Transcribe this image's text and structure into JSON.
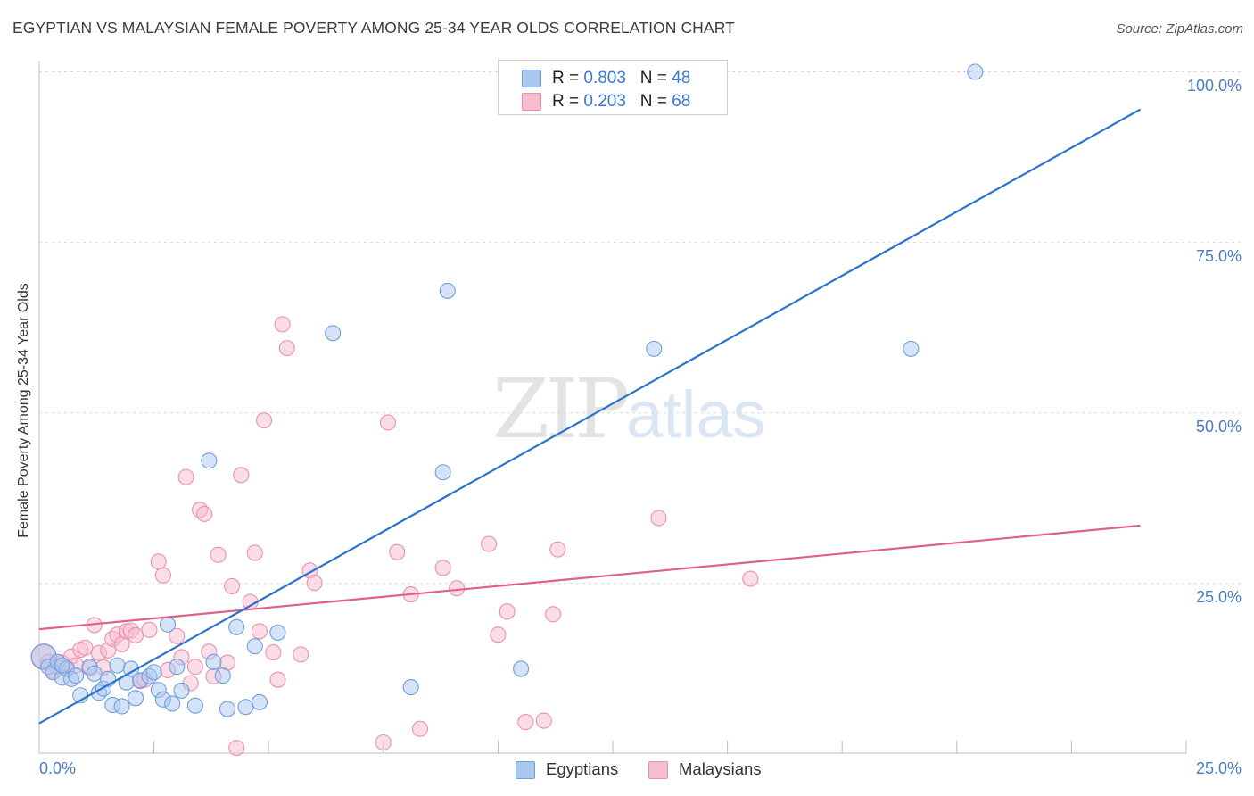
{
  "title": "EGYPTIAN VS MALAYSIAN FEMALE POVERTY AMONG 25-34 YEAR OLDS CORRELATION CHART",
  "source": "Source: ZipAtlas.com",
  "watermark": {
    "zip": "ZIP",
    "atlas": "atlas"
  },
  "legend_top": {
    "egyptians": {
      "r_label": "R = ",
      "r_value": "0.803",
      "n_label": "N = ",
      "n_value": "48"
    },
    "malaysians": {
      "r_label": "R = ",
      "r_value": "0.203",
      "n_label": "N = ",
      "n_value": "68"
    }
  },
  "legend_bottom": {
    "egyptians": "Egyptians",
    "malaysians": "Malaysians"
  },
  "colors": {
    "egyptians_fill": "#a9c8f0",
    "egyptians_stroke": "#6f9fdc",
    "egyptians_line": "#2b73cf",
    "malaysians_fill": "#f6bcd0",
    "malaysians_stroke": "#ec8fae",
    "malaysians_line": "#e0608d",
    "axis_label": "#4a7cc4"
  },
  "chart_data": {
    "type": "scatter",
    "title": "EGYPTIAN VS MALAYSIAN FEMALE POVERTY AMONG 25-34 YEAR OLDS CORRELATION CHART",
    "xlabel": "",
    "ylabel": "Female Poverty Among 25-34 Year Olds",
    "xlim": [
      0,
      25
    ],
    "ylim": [
      0,
      103
    ],
    "x_tick_labels": [
      "0.0%",
      "25.0%"
    ],
    "y_tick_labels": [
      "25.0%",
      "50.0%",
      "75.0%",
      "100.0%"
    ],
    "y_ticks": [
      25,
      50,
      75,
      100
    ],
    "grid": true,
    "legend_position": "top-center",
    "series": [
      {
        "name": "Egyptians",
        "r": 0.803,
        "n": 48,
        "trendline": {
          "x": [
            0,
            24
          ],
          "y": [
            4.5,
            94.5
          ]
        },
        "points": [
          [
            0.1,
            14.3
          ],
          [
            0.2,
            12.8
          ],
          [
            0.3,
            12.0
          ],
          [
            0.4,
            13.5
          ],
          [
            0.5,
            11.2
          ],
          [
            0.6,
            12.5
          ],
          [
            0.7,
            11.0
          ],
          [
            0.8,
            11.5
          ],
          [
            0.9,
            8.6
          ],
          [
            1.1,
            12.8
          ],
          [
            1.2,
            11.8
          ],
          [
            1.3,
            9.0
          ],
          [
            1.4,
            9.6
          ],
          [
            1.5,
            11.0
          ],
          [
            1.6,
            7.2
          ],
          [
            1.7,
            13.0
          ],
          [
            1.8,
            7.0
          ],
          [
            1.9,
            10.5
          ],
          [
            2.0,
            12.5
          ],
          [
            2.1,
            8.2
          ],
          [
            2.2,
            10.8
          ],
          [
            2.4,
            11.4
          ],
          [
            2.5,
            12.0
          ],
          [
            2.6,
            9.4
          ],
          [
            2.7,
            8.0
          ],
          [
            2.8,
            19.0
          ],
          [
            2.9,
            7.4
          ],
          [
            3.0,
            12.8
          ],
          [
            3.1,
            9.3
          ],
          [
            3.4,
            7.1
          ],
          [
            3.7,
            43.0
          ],
          [
            3.8,
            13.5
          ],
          [
            4.0,
            11.5
          ],
          [
            4.1,
            6.6
          ],
          [
            4.3,
            18.6
          ],
          [
            4.5,
            6.9
          ],
          [
            4.7,
            15.8
          ],
          [
            4.8,
            7.6
          ],
          [
            5.2,
            17.8
          ],
          [
            6.4,
            61.7
          ],
          [
            8.1,
            9.8
          ],
          [
            8.8,
            41.3
          ],
          [
            8.9,
            67.9
          ],
          [
            10.5,
            12.5
          ],
          [
            13.4,
            59.4
          ],
          [
            19.0,
            59.4
          ],
          [
            20.4,
            100.0
          ],
          [
            0.5,
            13.0
          ]
        ]
      },
      {
        "name": "Malaysians",
        "r": 0.203,
        "n": 68,
        "trendline": {
          "x": [
            0,
            24
          ],
          "y": [
            18.3,
            33.5
          ]
        },
        "points": [
          [
            0.1,
            14.2
          ],
          [
            0.2,
            13.5
          ],
          [
            0.3,
            12.2
          ],
          [
            0.4,
            12.8
          ],
          [
            0.5,
            13.4
          ],
          [
            0.6,
            12.7
          ],
          [
            0.7,
            14.3
          ],
          [
            0.8,
            13.0
          ],
          [
            0.9,
            15.3
          ],
          [
            1.0,
            15.6
          ],
          [
            1.1,
            12.6
          ],
          [
            1.2,
            18.9
          ],
          [
            1.3,
            14.8
          ],
          [
            1.4,
            12.7
          ],
          [
            1.5,
            15.2
          ],
          [
            1.6,
            16.9
          ],
          [
            1.7,
            17.5
          ],
          [
            1.8,
            16.1
          ],
          [
            1.9,
            18.0
          ],
          [
            2.0,
            18.1
          ],
          [
            2.1,
            17.4
          ],
          [
            2.2,
            10.7
          ],
          [
            2.3,
            10.9
          ],
          [
            2.4,
            18.2
          ],
          [
            2.6,
            28.2
          ],
          [
            2.7,
            26.2
          ],
          [
            2.8,
            12.3
          ],
          [
            3.0,
            17.3
          ],
          [
            3.1,
            14.2
          ],
          [
            3.2,
            40.6
          ],
          [
            3.3,
            10.4
          ],
          [
            3.4,
            12.8
          ],
          [
            3.5,
            35.8
          ],
          [
            3.6,
            35.2
          ],
          [
            3.7,
            15.0
          ],
          [
            3.8,
            11.4
          ],
          [
            3.9,
            29.2
          ],
          [
            4.1,
            13.4
          ],
          [
            4.2,
            24.6
          ],
          [
            4.3,
            0.9
          ],
          [
            4.4,
            40.9
          ],
          [
            4.6,
            22.3
          ],
          [
            4.7,
            29.5
          ],
          [
            4.8,
            18.0
          ],
          [
            4.9,
            48.9
          ],
          [
            5.1,
            14.9
          ],
          [
            5.2,
            10.9
          ],
          [
            5.3,
            63.0
          ],
          [
            5.4,
            59.5
          ],
          [
            5.7,
            14.6
          ],
          [
            5.9,
            26.9
          ],
          [
            6.0,
            25.1
          ],
          [
            7.5,
            1.7
          ],
          [
            7.6,
            48.6
          ],
          [
            7.8,
            29.6
          ],
          [
            8.1,
            23.4
          ],
          [
            8.3,
            3.7
          ],
          [
            8.8,
            27.3
          ],
          [
            9.1,
            24.3
          ],
          [
            9.8,
            30.8
          ],
          [
            10.0,
            17.5
          ],
          [
            10.2,
            20.9
          ],
          [
            10.6,
            4.7
          ],
          [
            11.0,
            4.9
          ],
          [
            11.2,
            20.5
          ],
          [
            11.3,
            30.0
          ],
          [
            13.5,
            34.6
          ],
          [
            15.5,
            25.7
          ]
        ]
      }
    ]
  }
}
